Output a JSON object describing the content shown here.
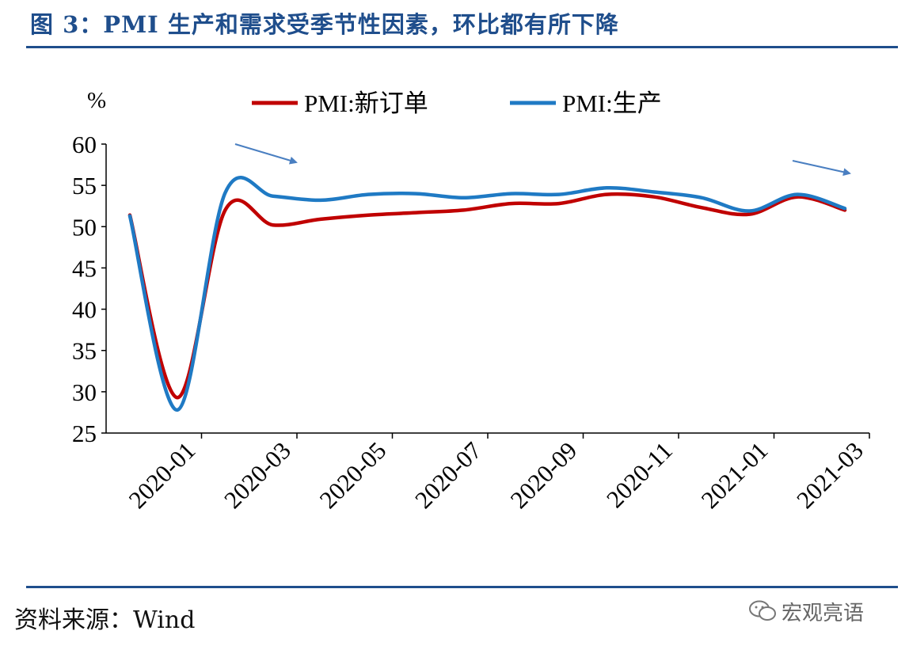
{
  "figure": {
    "title": "图 3：PMI 生产和需求受季节性因素，环比都有所下降",
    "source": "资料来源：Wind",
    "watermark": "宏观亮语"
  },
  "colors": {
    "accent": "#1f4e8c",
    "new_orders": "#c00000",
    "production": "#1f7ac4",
    "arrow": "#4a7fc1"
  },
  "chart_data": {
    "type": "line",
    "ylabel": "%",
    "ylim": [
      25,
      60
    ],
    "yticks": [
      "60",
      "55",
      "50",
      "45",
      "40",
      "35",
      "30",
      "25"
    ],
    "xtick_labels": [
      "2020-01",
      "2020-03",
      "2020-05",
      "2020-07",
      "2020-09",
      "2020-11",
      "2021-01",
      "2021-03"
    ],
    "x": [
      "2020-01",
      "2020-02",
      "2020-03",
      "2020-04",
      "2020-05",
      "2020-06",
      "2020-07",
      "2020-08",
      "2020-09",
      "2020-10",
      "2020-11",
      "2020-12",
      "2021-01",
      "2021-02",
      "2021-03",
      "2021-04"
    ],
    "legend_position": "top",
    "series": [
      {
        "name": "PMI:新订单",
        "color": "#c00000",
        "values": [
          51.4,
          29.3,
          52.0,
          50.2,
          50.9,
          51.4,
          51.7,
          52.0,
          52.8,
          52.8,
          53.9,
          53.6,
          52.3,
          51.5,
          53.6,
          52.0
        ]
      },
      {
        "name": "PMI:生产",
        "color": "#1f7ac4",
        "values": [
          51.3,
          27.8,
          54.1,
          53.7,
          53.2,
          53.9,
          54.0,
          53.5,
          54.0,
          53.9,
          54.7,
          54.2,
          53.5,
          51.9,
          53.9,
          52.2
        ]
      }
    ],
    "annotations": [
      "down-arrow-left",
      "down-arrow-right"
    ]
  }
}
